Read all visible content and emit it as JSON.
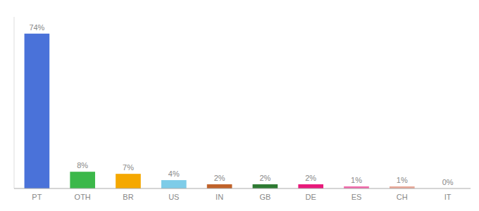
{
  "chart_data": {
    "type": "bar",
    "categories": [
      "PT",
      "OTH",
      "BR",
      "US",
      "IN",
      "GB",
      "DE",
      "ES",
      "CH",
      "IT"
    ],
    "values": [
      74,
      8,
      7,
      4,
      2,
      2,
      2,
      1,
      1,
      0
    ],
    "value_labels": [
      "74%",
      "8%",
      "7%",
      "4%",
      "2%",
      "2%",
      "2%",
      "1%",
      "1%",
      "0%"
    ],
    "colors": [
      "#4a72d9",
      "#3cb84a",
      "#f5a800",
      "#7ecce8",
      "#c0622a",
      "#2d7a32",
      "#e8197a",
      "#f06aaa",
      "#e8a898",
      "#ffcccc"
    ],
    "ylim": [
      0,
      82
    ],
    "data_labels": true,
    "tick_labels": "x",
    "grid": false
  }
}
